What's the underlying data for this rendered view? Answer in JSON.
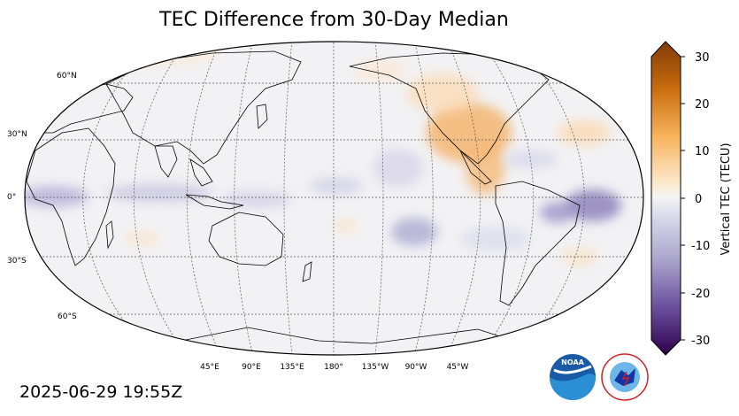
{
  "title": "TEC Difference from 30-Day Median",
  "timestamp": "2025-06-29 19:55Z",
  "colorbar": {
    "label": "Vertical TEC (TECU)",
    "ticks": [
      "30",
      "20",
      "10",
      "0",
      "-10",
      "-20",
      "-30"
    ],
    "range": [
      -30,
      30
    ],
    "positive_color": "#8a4600",
    "negative_color": "#2e0a4f"
  },
  "latitude_labels": [
    "60°N",
    "30°N",
    "0°",
    "30°S",
    "60°S"
  ],
  "longitude_labels": [
    "45°E",
    "90°E",
    "135°E",
    "180°",
    "135°W",
    "90°W",
    "45°W"
  ],
  "logos": {
    "noaa": "NOAA",
    "nws": "NATIONAL WEATHER SERVICE"
  }
}
